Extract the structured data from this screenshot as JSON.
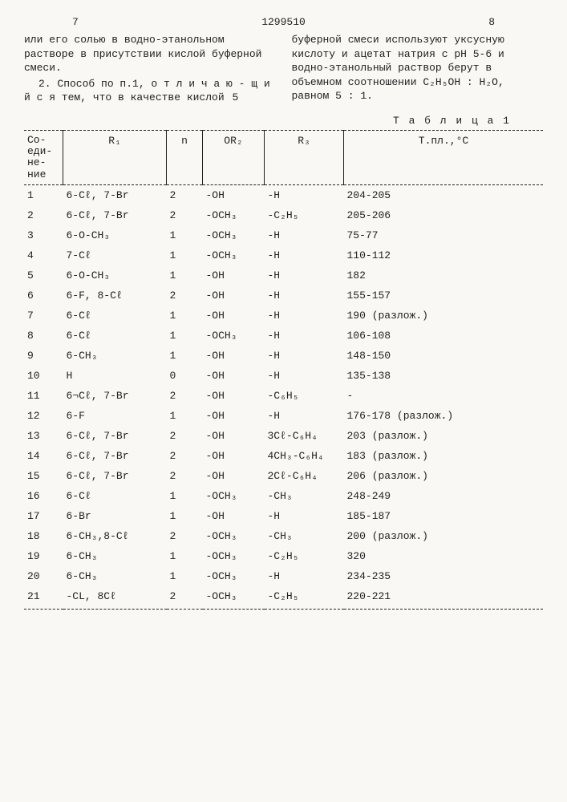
{
  "doc_number": "1299510",
  "col_num_left": "7",
  "col_num_right": "8",
  "left_para1": "или  его  солью в водно-этанольном растворе в присутствии кислой буферной смеси.",
  "left_para2": "2. Способ по п.1, о т л и ч а ю - щ и й с я тем, что в качестве кислой",
  "buffer_num": "5",
  "right_para": "буферной  смеси используют уксусную кислоту и ацетат натрия с pH 5-6 и водно-этанольный раствор берут в объемном соотношении C₂H₅OH : H₂O, равном 5 : 1.",
  "table_label": "Т а б л и ц а  1",
  "headers": {
    "c1": "Со-\nеди-\nне-\nние",
    "c2": "R₁",
    "c3": "n",
    "c4": "OR₂",
    "c5": "R₃",
    "c6": "Т.пл.,°C"
  },
  "rows": [
    {
      "n": "1",
      "r1": "6-Cℓ, 7-Br",
      "nn": "2",
      "or2": "-OH",
      "r3": "-H",
      "mp": "204-205"
    },
    {
      "n": "2",
      "r1": "6-Cℓ, 7-Br",
      "nn": "2",
      "or2": "-OCH₃",
      "r3": "-C₂H₅",
      "mp": "205-206"
    },
    {
      "n": "3",
      "r1": "6-O-CH₃",
      "nn": "1",
      "or2": "-OCH₃",
      "r3": "-H",
      "mp": "75-77"
    },
    {
      "n": "4",
      "r1": "7-Cℓ",
      "nn": "1",
      "or2": "-OCH₃",
      "r3": "-H",
      "mp": "110-112"
    },
    {
      "n": "5",
      "r1": "6-O-CH₃",
      "nn": "1",
      "or2": "-OH",
      "r3": "-H",
      "mp": "182"
    },
    {
      "n": "6",
      "r1": "6-F, 8-Cℓ",
      "nn": "2",
      "or2": "-OH",
      "r3": "-H",
      "mp": "155-157"
    },
    {
      "n": "7",
      "r1": "6-Cℓ",
      "nn": "1",
      "or2": "-OH",
      "r3": "-H",
      "mp": "190 (разлож.)"
    },
    {
      "n": "8",
      "r1": "6-Cℓ",
      "nn": "1",
      "or2": "-OCH₃",
      "r3": "-H",
      "mp": "106-108"
    },
    {
      "n": "9",
      "r1": "6-CH₃",
      "nn": "1",
      "or2": "-OH",
      "r3": "-H",
      "mp": "148-150"
    },
    {
      "n": "10",
      "r1": "H",
      "nn": "0",
      "or2": "-OH",
      "r3": "-H",
      "mp": "135-138"
    },
    {
      "n": "11",
      "r1": "6¬Cℓ, 7-Br",
      "nn": "2",
      "or2": "-OH",
      "r3": "-C₆H₅",
      "mp": "-"
    },
    {
      "n": "12",
      "r1": "6-F",
      "nn": "1",
      "or2": "-OH",
      "r3": "-H",
      "mp": "176-178 (разлож.)"
    },
    {
      "n": "13",
      "r1": "6-Cℓ, 7-Br",
      "nn": "2",
      "or2": "-OH",
      "r3": "3Cℓ-C₆H₄",
      "mp": "203 (разлож.)"
    },
    {
      "n": "14",
      "r1": "6-Cℓ, 7-Br",
      "nn": "2",
      "or2": "-OH",
      "r3": "4CH₃-C₆H₄",
      "mp": "183 (разлож.)"
    },
    {
      "n": "15",
      "r1": "6-Cℓ, 7-Br",
      "nn": "2",
      "or2": "-OH",
      "r3": "2Cℓ-C₆H₄",
      "mp": "206 (разлож.)"
    },
    {
      "n": "16",
      "r1": "6-Cℓ",
      "nn": "1",
      "or2": "-OCH₃",
      "r3": "-CH₃",
      "mp": "248-249"
    },
    {
      "n": "17",
      "r1": "6-Br",
      "nn": "1",
      "or2": "-OH",
      "r3": "-H",
      "mp": "185-187"
    },
    {
      "n": "18",
      "r1": "6-CH₃,8-Cℓ",
      "nn": "2",
      "or2": "-OCH₃",
      "r3": "-CH₃",
      "mp": "200 (разлож.)"
    },
    {
      "n": "19",
      "r1": "6-CH₃",
      "nn": "1",
      "or2": "-OCH₃",
      "r3": "-C₂H₅",
      "mp": "320"
    },
    {
      "n": "20",
      "r1": "6-CH₃",
      "nn": "1",
      "or2": "-OCH₃",
      "r3": "-H",
      "mp": "234-235"
    },
    {
      "n": "21",
      "r1": "-CL, 8Cℓ",
      "nn": "2",
      "or2": "-OCH₃",
      "r3": "-C₂H₅",
      "mp": "220-221"
    }
  ]
}
